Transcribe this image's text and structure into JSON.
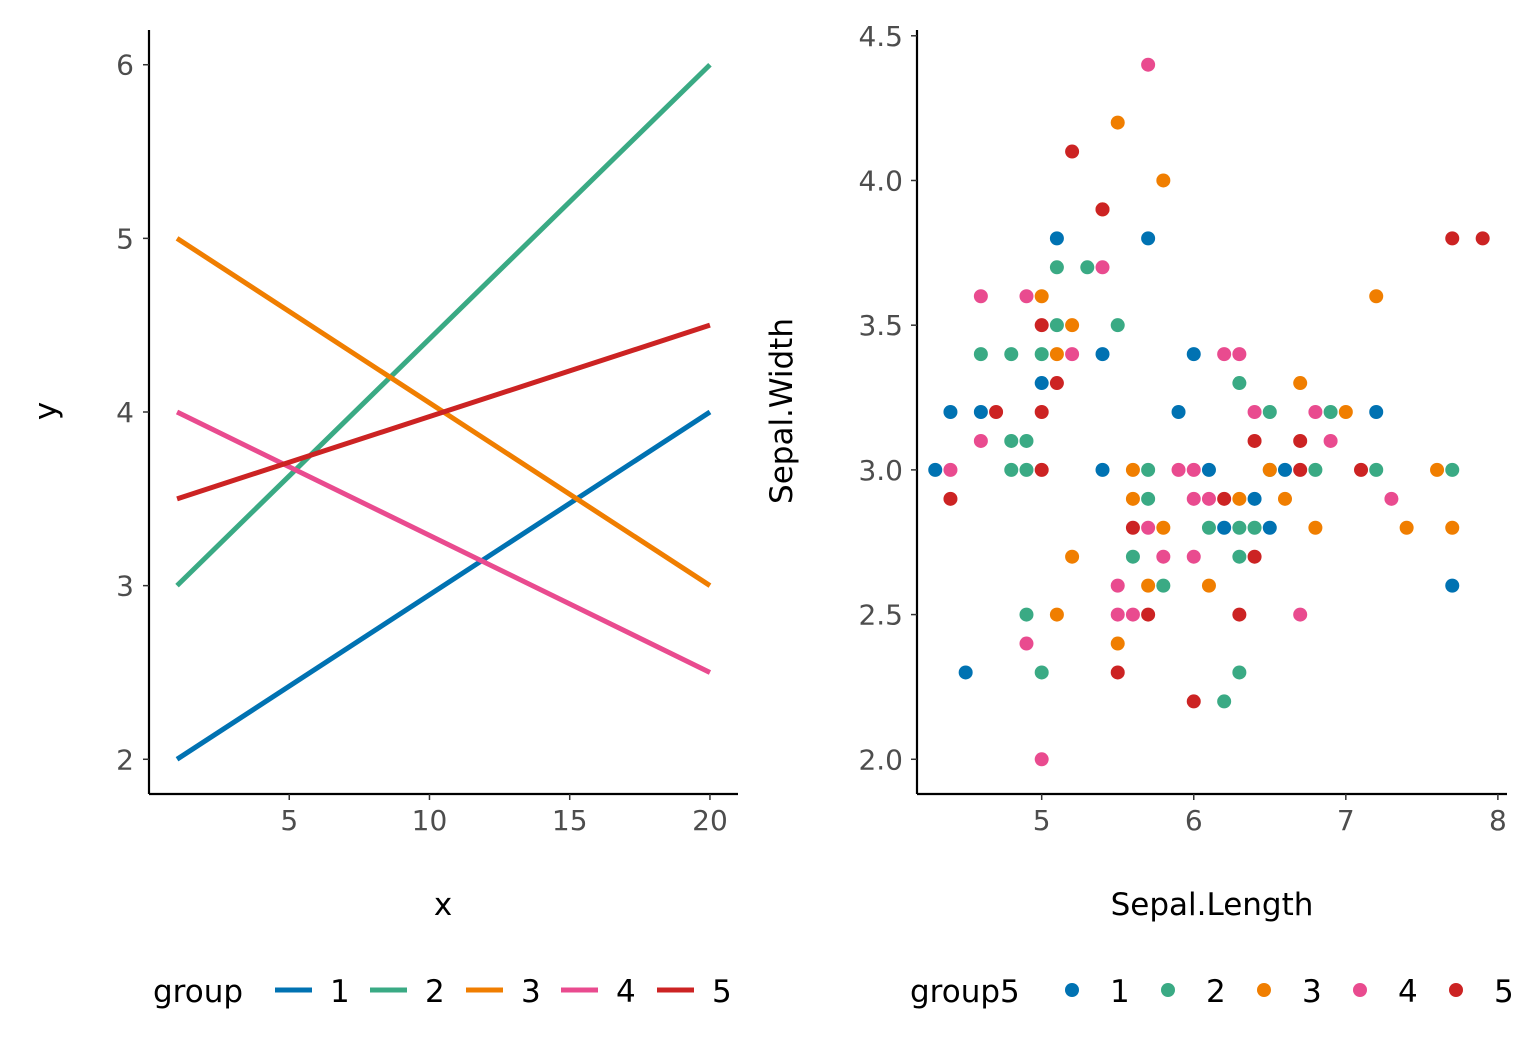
{
  "colors": {
    "1": "#0072B2",
    "2": "#3AAA84",
    "3": "#F07E00",
    "4": "#E94B8F",
    "5": "#CC2323"
  },
  "chart_data": [
    {
      "type": "line",
      "xlabel": "x",
      "ylabel": "y",
      "xlim": [
        0,
        21
      ],
      "ylim": [
        1.8,
        6.2
      ],
      "xticks": [
        5,
        10,
        15,
        20
      ],
      "yticks": [
        2,
        3,
        4,
        5,
        6
      ],
      "grid": false,
      "legend": {
        "title": "group",
        "position": "bottom"
      },
      "series": [
        {
          "name": "1",
          "color": "#0072B2",
          "x": [
            1,
            20
          ],
          "y": [
            2,
            4
          ]
        },
        {
          "name": "2",
          "color": "#3AAA84",
          "x": [
            1,
            20
          ],
          "y": [
            3,
            6
          ]
        },
        {
          "name": "3",
          "color": "#F07E00",
          "x": [
            1,
            20
          ],
          "y": [
            5,
            3
          ]
        },
        {
          "name": "4",
          "color": "#E94B8F",
          "x": [
            1,
            20
          ],
          "y": [
            4,
            2.5
          ]
        },
        {
          "name": "5",
          "color": "#CC2323",
          "x": [
            1,
            20
          ],
          "y": [
            3.5,
            4.5
          ]
        }
      ]
    },
    {
      "type": "scatter",
      "xlabel": "Sepal.Length",
      "ylabel": "Sepal.Width",
      "xlim": [
        4.18,
        8.06
      ],
      "ylim": [
        1.88,
        4.52
      ],
      "xticks": [
        5,
        6,
        7,
        8
      ],
      "yticks": [
        "2.0",
        "2.5",
        "3.0",
        "3.5",
        "4.0",
        "4.5"
      ],
      "grid": false,
      "legend": {
        "title": "group5",
        "position": "bottom"
      },
      "series": [
        {
          "name": "1",
          "color": "#0072B2",
          "points": [
            [
              4.3,
              3.0
            ],
            [
              4.4,
              3.2
            ],
            [
              4.5,
              2.3
            ],
            [
              4.6,
              3.2
            ],
            [
              5.0,
              3.3
            ],
            [
              5.1,
              3.8
            ],
            [
              5.4,
              3.4
            ],
            [
              5.4,
              3.0
            ],
            [
              5.7,
              3.8
            ],
            [
              5.9,
              3.2
            ],
            [
              6.0,
              3.4
            ],
            [
              6.1,
              3.0
            ],
            [
              6.2,
              2.8
            ],
            [
              6.4,
              2.9
            ],
            [
              6.5,
              2.8
            ],
            [
              6.6,
              3.0
            ],
            [
              7.2,
              3.2
            ],
            [
              7.7,
              2.6
            ]
          ]
        },
        {
          "name": "2",
          "color": "#3AAA84",
          "points": [
            [
              4.6,
              3.4
            ],
            [
              4.8,
              3.4
            ],
            [
              4.8,
              3.1
            ],
            [
              4.8,
              3.0
            ],
            [
              4.9,
              3.1
            ],
            [
              4.9,
              3.0
            ],
            [
              4.9,
              2.5
            ],
            [
              5.0,
              3.4
            ],
            [
              5.0,
              2.3
            ],
            [
              5.1,
              3.7
            ],
            [
              5.1,
              3.5
            ],
            [
              5.3,
              3.7
            ],
            [
              5.5,
              3.5
            ],
            [
              5.6,
              2.7
            ],
            [
              5.7,
              3.0
            ],
            [
              5.7,
              2.9
            ],
            [
              5.8,
              2.6
            ],
            [
              6.1,
              2.8
            ],
            [
              6.2,
              2.2
            ],
            [
              6.3,
              3.3
            ],
            [
              6.3,
              2.8
            ],
            [
              6.3,
              2.7
            ],
            [
              6.3,
              2.3
            ],
            [
              6.4,
              2.8
            ],
            [
              6.5,
              3.2
            ],
            [
              6.5,
              3.0
            ],
            [
              6.8,
              3.0
            ],
            [
              6.9,
              3.2
            ],
            [
              7.2,
              3.0
            ],
            [
              7.7,
              3.0
            ]
          ]
        },
        {
          "name": "3",
          "color": "#F07E00",
          "points": [
            [
              5.0,
              3.6
            ],
            [
              5.1,
              3.4
            ],
            [
              5.1,
              2.5
            ],
            [
              5.2,
              3.5
            ],
            [
              5.2,
              2.7
            ],
            [
              5.4,
              3.9
            ],
            [
              5.5,
              4.2
            ],
            [
              5.5,
              2.4
            ],
            [
              5.6,
              3.0
            ],
            [
              5.6,
              2.9
            ],
            [
              5.7,
              2.6
            ],
            [
              5.8,
              4.0
            ],
            [
              5.8,
              2.8
            ],
            [
              6.1,
              2.6
            ],
            [
              6.3,
              2.9
            ],
            [
              6.5,
              3.0
            ],
            [
              6.6,
              2.9
            ],
            [
              6.7,
              3.3
            ],
            [
              6.8,
              2.8
            ],
            [
              7.0,
              3.2
            ],
            [
              7.2,
              3.6
            ],
            [
              7.4,
              2.8
            ],
            [
              7.6,
              3.0
            ],
            [
              7.7,
              2.8
            ]
          ]
        },
        {
          "name": "4",
          "color": "#E94B8F",
          "points": [
            [
              4.4,
              3.0
            ],
            [
              4.6,
              3.6
            ],
            [
              4.6,
              3.1
            ],
            [
              4.9,
              3.6
            ],
            [
              4.9,
              2.4
            ],
            [
              5.0,
              2.0
            ],
            [
              5.2,
              3.4
            ],
            [
              5.4,
              3.7
            ],
            [
              5.5,
              2.6
            ],
            [
              5.5,
              2.5
            ],
            [
              5.6,
              2.5
            ],
            [
              5.7,
              4.4
            ],
            [
              5.7,
              2.8
            ],
            [
              5.8,
              2.7
            ],
            [
              5.9,
              3.0
            ],
            [
              6.0,
              3.0
            ],
            [
              6.0,
              2.9
            ],
            [
              6.0,
              2.7
            ],
            [
              6.1,
              2.9
            ],
            [
              6.2,
              3.4
            ],
            [
              6.3,
              3.4
            ],
            [
              6.4,
              3.2
            ],
            [
              6.7,
              2.5
            ],
            [
              6.8,
              3.2
            ],
            [
              6.9,
              3.1
            ],
            [
              7.3,
              2.9
            ]
          ]
        },
        {
          "name": "5",
          "color": "#CC2323",
          "points": [
            [
              4.4,
              2.9
            ],
            [
              4.7,
              3.2
            ],
            [
              5.0,
              3.5
            ],
            [
              5.0,
              3.2
            ],
            [
              5.0,
              3.0
            ],
            [
              5.1,
              3.3
            ],
            [
              5.2,
              4.1
            ],
            [
              5.4,
              3.9
            ],
            [
              5.5,
              2.3
            ],
            [
              5.6,
              2.8
            ],
            [
              5.7,
              2.5
            ],
            [
              6.0,
              2.2
            ],
            [
              6.2,
              2.9
            ],
            [
              6.3,
              2.5
            ],
            [
              6.4,
              3.1
            ],
            [
              6.4,
              2.7
            ],
            [
              6.7,
              3.1
            ],
            [
              6.7,
              3.0
            ],
            [
              7.1,
              3.0
            ],
            [
              7.7,
              3.8
            ],
            [
              7.9,
              3.8
            ]
          ]
        }
      ]
    }
  ]
}
